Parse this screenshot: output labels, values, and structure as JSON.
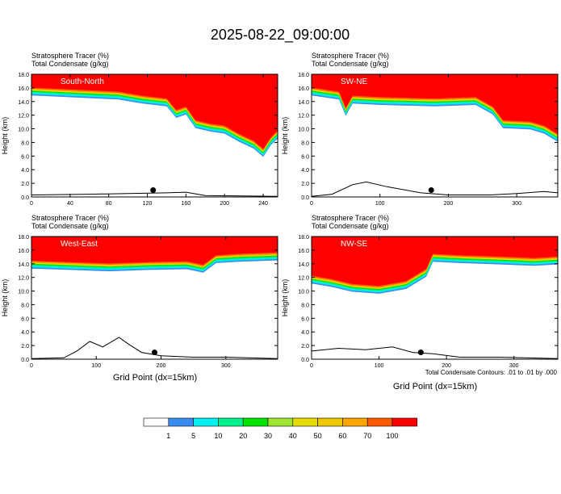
{
  "title": "2025-08-22_09:00:00",
  "colors": {
    "white": "#ffffff",
    "scale": [
      "#ffffff",
      "#3b8cf0",
      "#00f0f0",
      "#00f08c",
      "#00e400",
      "#a0e632",
      "#e6dc00",
      "#f0c800",
      "#faa500",
      "#ff5a00",
      "#ff0000"
    ]
  },
  "colorbar": {
    "labels": [
      "1",
      "5",
      "10",
      "20",
      "30",
      "40",
      "50",
      "60",
      "70",
      "100"
    ]
  },
  "xlabel": "Grid Point (dx=15km)",
  "ylabel": "Height (km)",
  "footnote": "Total Condensate Contours: .01 to .01 by .000",
  "chart_data": [
    {
      "type": "heatmap",
      "name": "South-North",
      "line1": "Stratosphere Tracer   (%)",
      "line2": "Total Condensate   (g/kg)",
      "xmax": 255,
      "xticks": [
        0,
        40,
        80,
        120,
        160,
        200,
        240
      ],
      "yticks": [
        0.0,
        2.0,
        4.0,
        6.0,
        8.0,
        10.0,
        12.0,
        14.0,
        16.0,
        18.0
      ],
      "ylim": [
        0,
        18
      ],
      "tropopause": [
        [
          0,
          15.8
        ],
        [
          30,
          15.6
        ],
        [
          60,
          15.4
        ],
        [
          90,
          15.2
        ],
        [
          115,
          14.6
        ],
        [
          140,
          14.2
        ],
        [
          150,
          12.5
        ],
        [
          160,
          13.0
        ],
        [
          170,
          11.0
        ],
        [
          185,
          10.5
        ],
        [
          200,
          10.2
        ],
        [
          215,
          9.0
        ],
        [
          230,
          8.0
        ],
        [
          240,
          6.8
        ],
        [
          248,
          8.5
        ],
        [
          255,
          9.5
        ]
      ],
      "terrain": [
        [
          0,
          0.3
        ],
        [
          60,
          0.4
        ],
        [
          100,
          0.5
        ],
        [
          140,
          0.6
        ],
        [
          160,
          0.7
        ],
        [
          180,
          0.2
        ],
        [
          255,
          0.1
        ]
      ],
      "marker_x": 126
    },
    {
      "type": "heatmap",
      "name": "SW-NE",
      "line1": "Stratosphere Tracer   (%)",
      "line2": "Total Condensate   (g/kg)",
      "xmax": 360,
      "xticks": [
        0,
        100,
        200,
        300
      ],
      "yticks": [
        0.0,
        2.0,
        4.0,
        6.0,
        8.0,
        10.0,
        12.0,
        14.0,
        16.0,
        18.0
      ],
      "ylim": [
        0,
        18
      ],
      "tropopause": [
        [
          0,
          15.8
        ],
        [
          40,
          15.2
        ],
        [
          50,
          12.8
        ],
        [
          60,
          14.6
        ],
        [
          100,
          14.4
        ],
        [
          180,
          14.2
        ],
        [
          240,
          14.4
        ],
        [
          265,
          13.0
        ],
        [
          280,
          11.0
        ],
        [
          320,
          10.8
        ],
        [
          340,
          10.2
        ],
        [
          360,
          9.0
        ]
      ],
      "terrain": [
        [
          0,
          0.1
        ],
        [
          30,
          0.4
        ],
        [
          60,
          1.8
        ],
        [
          80,
          2.2
        ],
        [
          110,
          1.5
        ],
        [
          160,
          0.6
        ],
        [
          200,
          0.3
        ],
        [
          260,
          0.3
        ],
        [
          300,
          0.5
        ],
        [
          340,
          0.8
        ],
        [
          360,
          0.6
        ]
      ],
      "marker_x": 175
    },
    {
      "type": "heatmap",
      "name": "West-East",
      "line1": "Stratosphere Tracer   (%)",
      "line2": "Total Condensate   (g/kg)",
      "xmax": 380,
      "xticks": [
        0,
        100,
        200,
        300
      ],
      "yticks": [
        0.0,
        2.0,
        4.0,
        6.0,
        8.0,
        10.0,
        12.0,
        14.0,
        16.0,
        18.0
      ],
      "ylim": [
        0,
        18
      ],
      "tropopause": [
        [
          0,
          14.2
        ],
        [
          60,
          14.0
        ],
        [
          120,
          13.8
        ],
        [
          180,
          14.0
        ],
        [
          240,
          14.1
        ],
        [
          265,
          13.6
        ],
        [
          285,
          15.0
        ],
        [
          320,
          15.2
        ],
        [
          380,
          15.4
        ]
      ],
      "terrain": [
        [
          0,
          0.1
        ],
        [
          50,
          0.2
        ],
        [
          70,
          1.2
        ],
        [
          90,
          2.6
        ],
        [
          110,
          1.8
        ],
        [
          135,
          3.2
        ],
        [
          150,
          2.2
        ],
        [
          170,
          1.0
        ],
        [
          200,
          0.5
        ],
        [
          250,
          0.3
        ],
        [
          300,
          0.3
        ],
        [
          380,
          0.1
        ]
      ],
      "marker_x": 190
    },
    {
      "type": "heatmap",
      "name": "NW-SE",
      "line1": "Stratosphere Tracer   (%)",
      "line2": "Total Condensate   (g/kg)",
      "xmax": 365,
      "xticks": [
        0,
        100,
        200,
        300
      ],
      "yticks": [
        0.0,
        2.0,
        4.0,
        6.0,
        8.0,
        10.0,
        12.0,
        14.0,
        16.0,
        18.0
      ],
      "ylim": [
        0,
        18
      ],
      "tropopause": [
        [
          0,
          12.0
        ],
        [
          30,
          11.5
        ],
        [
          60,
          10.8
        ],
        [
          100,
          10.5
        ],
        [
          140,
          11.2
        ],
        [
          170,
          13.0
        ],
        [
          180,
          15.2
        ],
        [
          220,
          15.0
        ],
        [
          280,
          14.8
        ],
        [
          330,
          14.6
        ],
        [
          365,
          14.8
        ]
      ],
      "terrain": [
        [
          0,
          1.2
        ],
        [
          40,
          1.6
        ],
        [
          80,
          1.4
        ],
        [
          120,
          1.8
        ],
        [
          150,
          1.0
        ],
        [
          180,
          0.8
        ],
        [
          220,
          0.3
        ],
        [
          280,
          0.3
        ],
        [
          365,
          0.1
        ]
      ],
      "marker_x": 162
    }
  ]
}
